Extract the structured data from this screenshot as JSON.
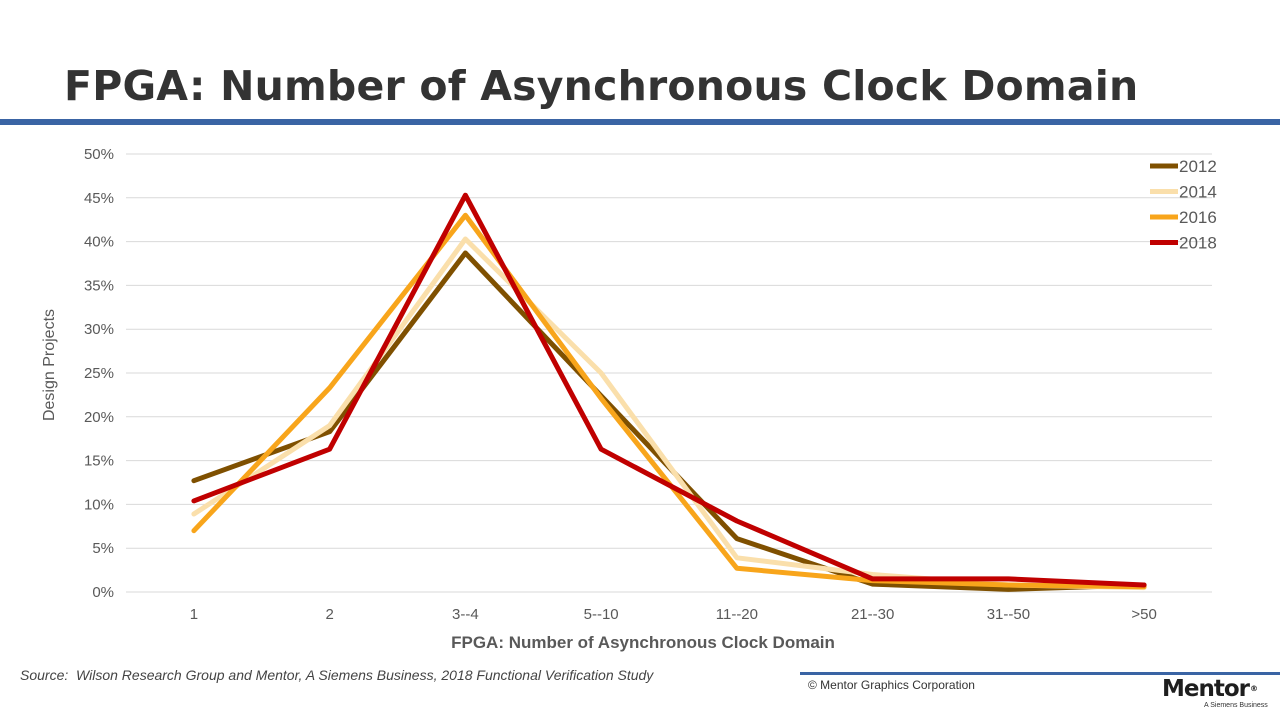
{
  "slide": {
    "title": "FPGA: Number of Asynchronous Clock Domain",
    "source": "Source:  Wilson Research Group and Mentor, A Siemens Business, 2018 Functional Verification Study",
    "copyright": "© Mentor Graphics Corporation",
    "logo": {
      "name": "Mentor",
      "tagline": "A Siemens Business",
      "mark": "®"
    }
  },
  "colors": {
    "title_rule": "#3a64a4",
    "grid": "#d9d9d9",
    "axis_text": "#595959"
  },
  "chart_data": {
    "type": "line",
    "title": "",
    "xlabel": "FPGA: Number of Asynchronous Clock Domain",
    "ylabel": "Design Projects",
    "categories": [
      "1",
      "2",
      "3--4",
      "5--10",
      "11--20",
      "21--30",
      "31--50",
      ">50"
    ],
    "ylim": [
      0,
      50
    ],
    "yticks": [
      0,
      5,
      10,
      15,
      20,
      25,
      30,
      35,
      40,
      45,
      50
    ],
    "ytick_labels": [
      "0%",
      "5%",
      "10%",
      "15%",
      "20%",
      "25%",
      "30%",
      "35%",
      "40%",
      "45%",
      "50%"
    ],
    "grid": true,
    "legend_position": "top-right",
    "series": [
      {
        "name": "2012",
        "color": "#7f5000",
        "values": [
          12.7,
          18.3,
          38.7,
          22.4,
          6.1,
          0.9,
          0.3,
          0.8
        ]
      },
      {
        "name": "2014",
        "color": "#fadfab",
        "values": [
          8.9,
          19.0,
          40.3,
          25.0,
          3.9,
          2.0,
          0.8,
          0.5
        ]
      },
      {
        "name": "2016",
        "color": "#f8a51b",
        "values": [
          7.0,
          23.3,
          43.0,
          22.1,
          2.7,
          1.3,
          0.8,
          0.6
        ]
      },
      {
        "name": "2018",
        "color": "#c00000",
        "values": [
          10.4,
          16.3,
          45.3,
          16.3,
          8.1,
          1.5,
          1.5,
          0.8
        ]
      }
    ]
  }
}
